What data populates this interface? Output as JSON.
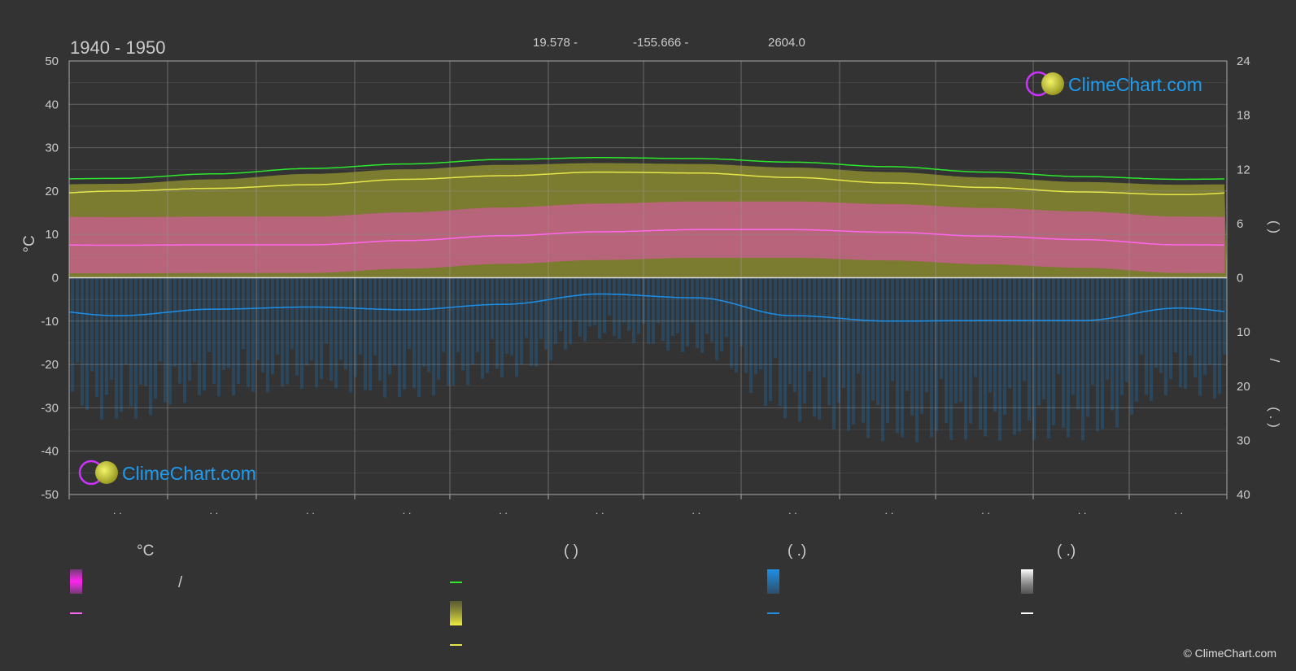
{
  "header": {
    "period": "1940 - 1950",
    "latitude": "19.578 -",
    "longitude": "-155.666 -",
    "elevation": "2604.0"
  },
  "axes": {
    "left_unit": "°C",
    "left_ticks": [
      "50",
      "40",
      "30",
      "20",
      "10",
      "0",
      "-10",
      "-20",
      "-30",
      "-40",
      "-50"
    ],
    "right_top_ticks": [
      "24",
      "18",
      "12",
      "6",
      "0"
    ],
    "right_bottom_ticks": [
      "10",
      "20",
      "30",
      "40"
    ],
    "right_label_top": "(       )",
    "right_label_slash": "/",
    "right_label_bottom": "(  .  )",
    "month_ticks": [
      ". .",
      ". .",
      ". .",
      ". .",
      ". .",
      ". .",
      ". .",
      ". .",
      ". .",
      ". .",
      ". .",
      ". ."
    ]
  },
  "logo": {
    "text": "ClimeChart.com"
  },
  "legend": {
    "col1_title": "°C",
    "col1_item1": "/",
    "col2_title": "(            )",
    "col3_title": "(   .)",
    "col4_title": "(   .)"
  },
  "copyright": "© ClimeChart.com",
  "colors": {
    "background": "#333333",
    "daylight": "#2ee82e",
    "sunshine": "#e6e64a",
    "temperature": "#ff66ee",
    "precipitation": "#1e8fe6",
    "logo_text": "#1e9cf0"
  },
  "chart_data": {
    "type": "line",
    "x": [
      "Jan",
      "Feb",
      "Mar",
      "Apr",
      "May",
      "Jun",
      "Jul",
      "Aug",
      "Sep",
      "Oct",
      "Nov",
      "Dec"
    ],
    "ylim": [
      -50,
      50
    ],
    "y2_top_lim": [
      0,
      24
    ],
    "y2_bottom_lim": [
      0,
      40
    ],
    "series": [
      {
        "key": "daylight",
        "axis": "hours",
        "values": [
          11.0,
          11.5,
          12.1,
          12.6,
          13.1,
          13.3,
          13.2,
          12.8,
          12.3,
          11.7,
          11.2,
          10.9
        ]
      },
      {
        "key": "sunshine",
        "axis": "hours",
        "values": [
          9.6,
          9.9,
          10.3,
          10.9,
          11.3,
          11.7,
          11.6,
          11.1,
          10.5,
          10.0,
          9.5,
          9.2
        ]
      },
      {
        "key": "temperature_mean",
        "axis": "celsius",
        "values": [
          7.5,
          7.6,
          7.6,
          8.6,
          9.7,
          10.6,
          11.1,
          11.1,
          10.5,
          9.6,
          8.8,
          7.6
        ]
      },
      {
        "key": "precipitation",
        "axis": "mm",
        "values": [
          7.0,
          5.8,
          5.4,
          5.9,
          4.9,
          3.0,
          3.7,
          7.0,
          8.0,
          7.9,
          7.9,
          5.6
        ]
      }
    ],
    "bands": {
      "temperature_range_top": 17,
      "temperature_range_bottom": 5
    }
  }
}
